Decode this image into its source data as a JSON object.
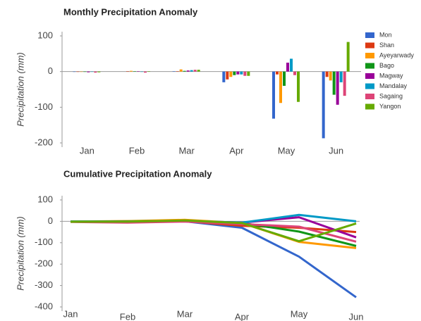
{
  "chart_data": [
    {
      "type": "bar",
      "title": "Monthly Precipitation Anomaly",
      "y_label": "Precipitation (mm)",
      "categories": [
        "Jan",
        "Feb",
        "Mar",
        "Apr",
        "May",
        "Jun"
      ],
      "ylim": [
        -200,
        100
      ],
      "yticks": [
        -200,
        -100,
        0,
        100
      ],
      "series": [
        {
          "name": "Mon",
          "color": "#3366cc",
          "values": [
            -1,
            0,
            1,
            -30,
            -132,
            -187
          ]
        },
        {
          "name": "Shan",
          "color": "#dc3912",
          "values": [
            -1,
            1,
            1,
            -22,
            -8,
            -15
          ]
        },
        {
          "name": "Ayeyarwady",
          "color": "#ff9900",
          "values": [
            -1,
            2,
            6,
            -15,
            -88,
            -25
          ]
        },
        {
          "name": "Bago",
          "color": "#109618",
          "values": [
            -1,
            1,
            2,
            -10,
            -40,
            -65
          ]
        },
        {
          "name": "Magway",
          "color": "#990099",
          "values": [
            -2,
            1,
            3,
            -8,
            25,
            -93
          ]
        },
        {
          "name": "Mandalay",
          "color": "#0099c6",
          "values": [
            -1,
            -1,
            4,
            -8,
            36,
            -30
          ]
        },
        {
          "name": "Sagaing",
          "color": "#dd4477",
          "values": [
            -3,
            -3,
            5,
            -12,
            -10,
            -68
          ]
        },
        {
          "name": "Yangon",
          "color": "#66aa00",
          "values": [
            -2,
            1,
            5,
            -12,
            -85,
            83
          ]
        }
      ]
    },
    {
      "type": "line",
      "title": "Cumulative Precipitation Anomaly",
      "y_label": "Precipitation (mm)",
      "categories": [
        "Jan",
        "Feb",
        "Mar",
        "Apr",
        "May",
        "Jun"
      ],
      "ylim": [
        -400,
        100
      ],
      "yticks": [
        -400,
        -300,
        -200,
        -100,
        0,
        100
      ],
      "series": [
        {
          "name": "Mon",
          "color": "#3366cc",
          "values": [
            -1,
            -1,
            0,
            -30,
            -165,
            -355
          ]
        },
        {
          "name": "Shan",
          "color": "#dc3912",
          "values": [
            -1,
            0,
            1,
            -21,
            -30,
            -50
          ]
        },
        {
          "name": "Ayeyarwady",
          "color": "#ff9900",
          "values": [
            -1,
            1,
            7,
            -8,
            -96,
            -125
          ]
        },
        {
          "name": "Bago",
          "color": "#109618",
          "values": [
            -1,
            0,
            2,
            -8,
            -48,
            -115
          ]
        },
        {
          "name": "Magway",
          "color": "#990099",
          "values": [
            -2,
            -1,
            2,
            -6,
            19,
            -75
          ]
        },
        {
          "name": "Mandalay",
          "color": "#0099c6",
          "values": [
            -1,
            -2,
            2,
            -6,
            30,
            0
          ]
        },
        {
          "name": "Sagaing",
          "color": "#dd4477",
          "values": [
            -3,
            -6,
            -1,
            -13,
            -25,
            -95
          ]
        },
        {
          "name": "Yangon",
          "color": "#66aa00",
          "values": [
            -2,
            -1,
            4,
            -8,
            -93,
            -10
          ]
        }
      ]
    }
  ]
}
